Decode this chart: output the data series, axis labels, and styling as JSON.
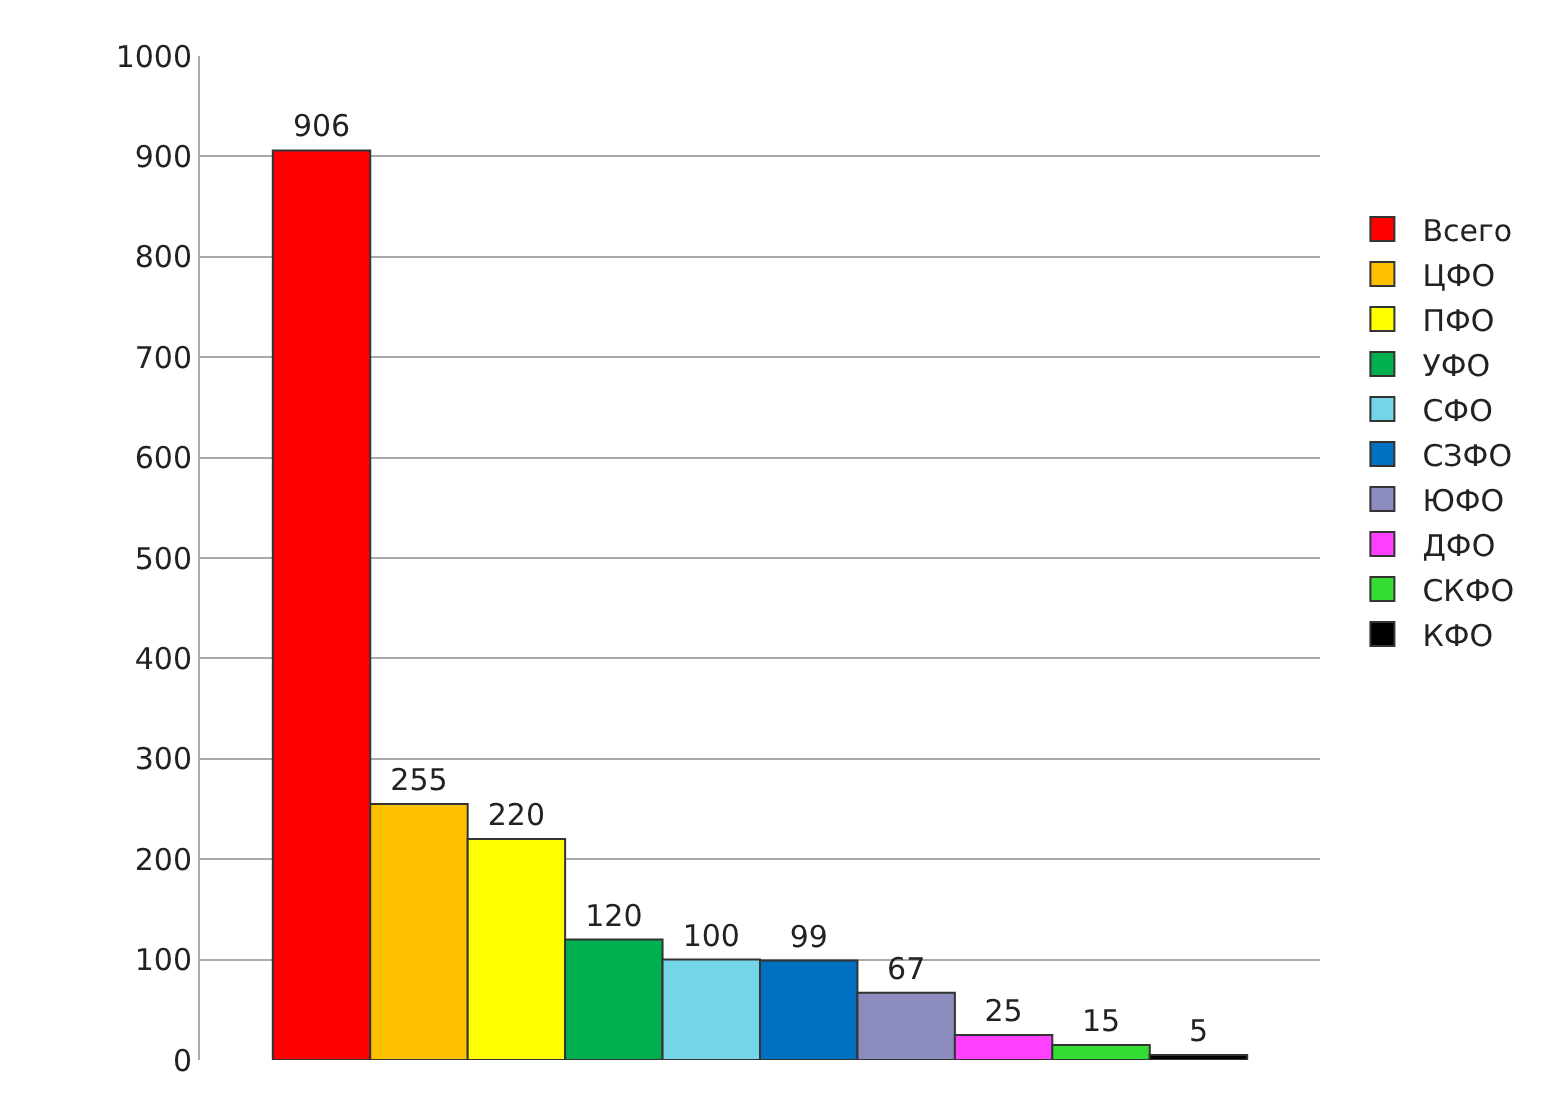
{
  "chart_data": {
    "type": "bar",
    "categories": [
      null
    ],
    "series": [
      {
        "name": "Всего",
        "color": "#ff0000",
        "values": [
          906
        ]
      },
      {
        "name": "ЦФО",
        "color": "#ffc000",
        "values": [
          255
        ]
      },
      {
        "name": "ПФО",
        "color": "#ffff00",
        "values": [
          220
        ]
      },
      {
        "name": "УФО",
        "color": "#00b050",
        "values": [
          120
        ]
      },
      {
        "name": "СФО",
        "color": "#75d5e8",
        "values": [
          100
        ]
      },
      {
        "name": "СЗФО",
        "color": "#0070c0",
        "values": [
          99
        ]
      },
      {
        "name": "ЮФО",
        "color": "#8c8cbf",
        "values": [
          67
        ]
      },
      {
        "name": "ДФО",
        "color": "#ff40ff",
        "values": [
          25
        ]
      },
      {
        "name": "СКФО",
        "color": "#33dd33",
        "values": [
          15
        ]
      },
      {
        "name": "КФО",
        "color": "#000000",
        "values": [
          5
        ]
      }
    ],
    "ylim": [
      0,
      1000
    ],
    "yticks": [
      0,
      100,
      200,
      300,
      400,
      500,
      600,
      700,
      800,
      900,
      1000
    ],
    "grid": "y",
    "legend": "right",
    "data_labels": true
  }
}
